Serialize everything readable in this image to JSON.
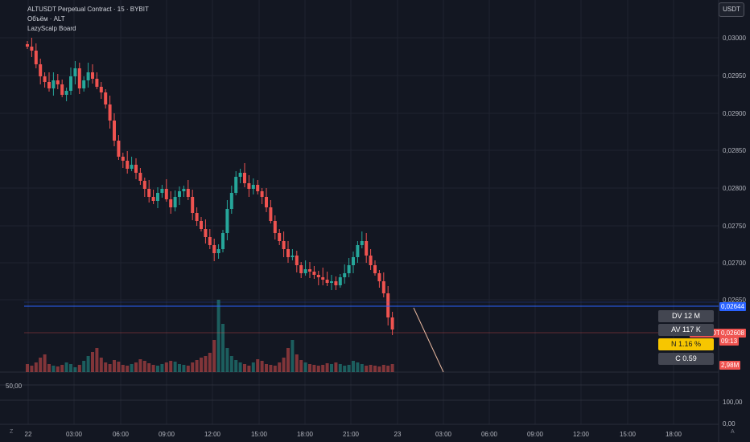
{
  "legend": {
    "title": "ALTUSDT Perpetual Contract · 15 · BYBIT",
    "volume": "Объём · ALT",
    "indicator": "LazyScalp Board"
  },
  "currency_button": "USDT",
  "price_axis": [
    "0,03000",
    "0,02950",
    "0,02900",
    "0,02850",
    "0,02800",
    "0,02750",
    "0,02700",
    "0,02650"
  ],
  "time_axis": [
    "22",
    "03:00",
    "06:00",
    "09:00",
    "12:00",
    "15:00",
    "18:00",
    "21:00",
    "23",
    "03:00",
    "06:00",
    "09:00",
    "12:00",
    "15:00",
    "18:00"
  ],
  "oscillator_axis": {
    "left_value": "50,00",
    "right_mid": "100,00",
    "right_bottom": "0,00"
  },
  "tags": {
    "line_price": "0,02644",
    "symbol": "ALTUSDT.P",
    "last_price": "0,02608",
    "countdown": "09:13",
    "volume": "2,98M"
  },
  "board": {
    "dv": "DV 12 M",
    "av": "AV 117 K",
    "n": "N 1.16 %",
    "c": "C  0.59"
  },
  "scroll": {
    "left": "Z",
    "right": "A"
  },
  "colors": {
    "up": "#26a69a",
    "down": "#ef5350",
    "blue_line": "#2962ff",
    "bg": "#131722"
  }
}
